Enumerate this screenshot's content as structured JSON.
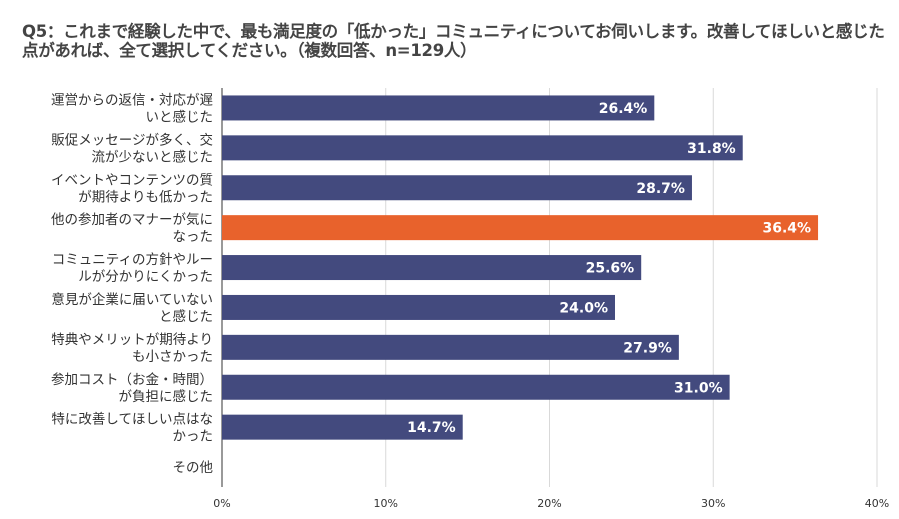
{
  "chart_data": {
    "type": "bar",
    "orientation": "horizontal",
    "title": "Q5：これまで経験した中で、最も満足度の「低かった」コミュニティについてお伺いします。改善してほしいと感じた点があれば、全て選択してください。（複数回答、n=129人）",
    "categories": [
      "運営からの返信・対応が遅\nいと感じた",
      "販促メッセージが多く、交\n流が少ないと感じた",
      "イベントやコンテンツの質\nが期待よりも低かった",
      "他の参加者のマナーが気に\nなった",
      "コミュニティの方針やルー\nルが分かりにくかった",
      "意見が企業に届いていない\nと感じた",
      "特典やメリットが期待より\nも小さかった",
      "参加コスト（お金・時間）\nが負担に感じた",
      "特に改善してほしい点はな\nかった",
      "その他"
    ],
    "values": [
      26.4,
      31.8,
      28.7,
      36.4,
      25.6,
      24.0,
      27.9,
      31.0,
      14.7,
      0
    ],
    "data_labels": [
      "26.4%",
      "31.8%",
      "28.7%",
      "36.4%",
      "25.6%",
      "24.0%",
      "27.9%",
      "31.0%",
      "14.7%",
      ""
    ],
    "highlight_index": 3,
    "xlim": [
      0,
      40
    ],
    "xticks": [
      "0%",
      "10%",
      "20%",
      "30%",
      "40%"
    ],
    "grid": true,
    "colors": {
      "bar": "#434a7e",
      "highlight": "#e8622c",
      "grid": "#d9d9d9",
      "axis": "#333333"
    }
  }
}
